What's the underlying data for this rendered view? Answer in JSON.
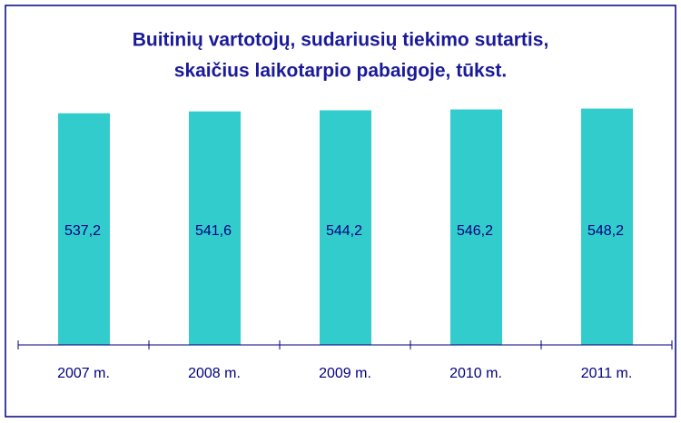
{
  "chart_data": {
    "type": "bar",
    "title": [
      "Buitinių vartotojų, sudariusių tiekimo sutartis,",
      "skaičius laikotarpio pabaigoje, tūkst."
    ],
    "categories": [
      "2007 m.",
      "2008 m.",
      "2009 m.",
      "2010 m.",
      "2011 m."
    ],
    "values": [
      537.2,
      541.6,
      544.2,
      546.2,
      548.2
    ],
    "value_labels": [
      "537,2",
      "541,6",
      "544,2",
      "546,2",
      "548,2"
    ],
    "color": "#33cccc",
    "ylim": [
      0,
      600
    ]
  }
}
